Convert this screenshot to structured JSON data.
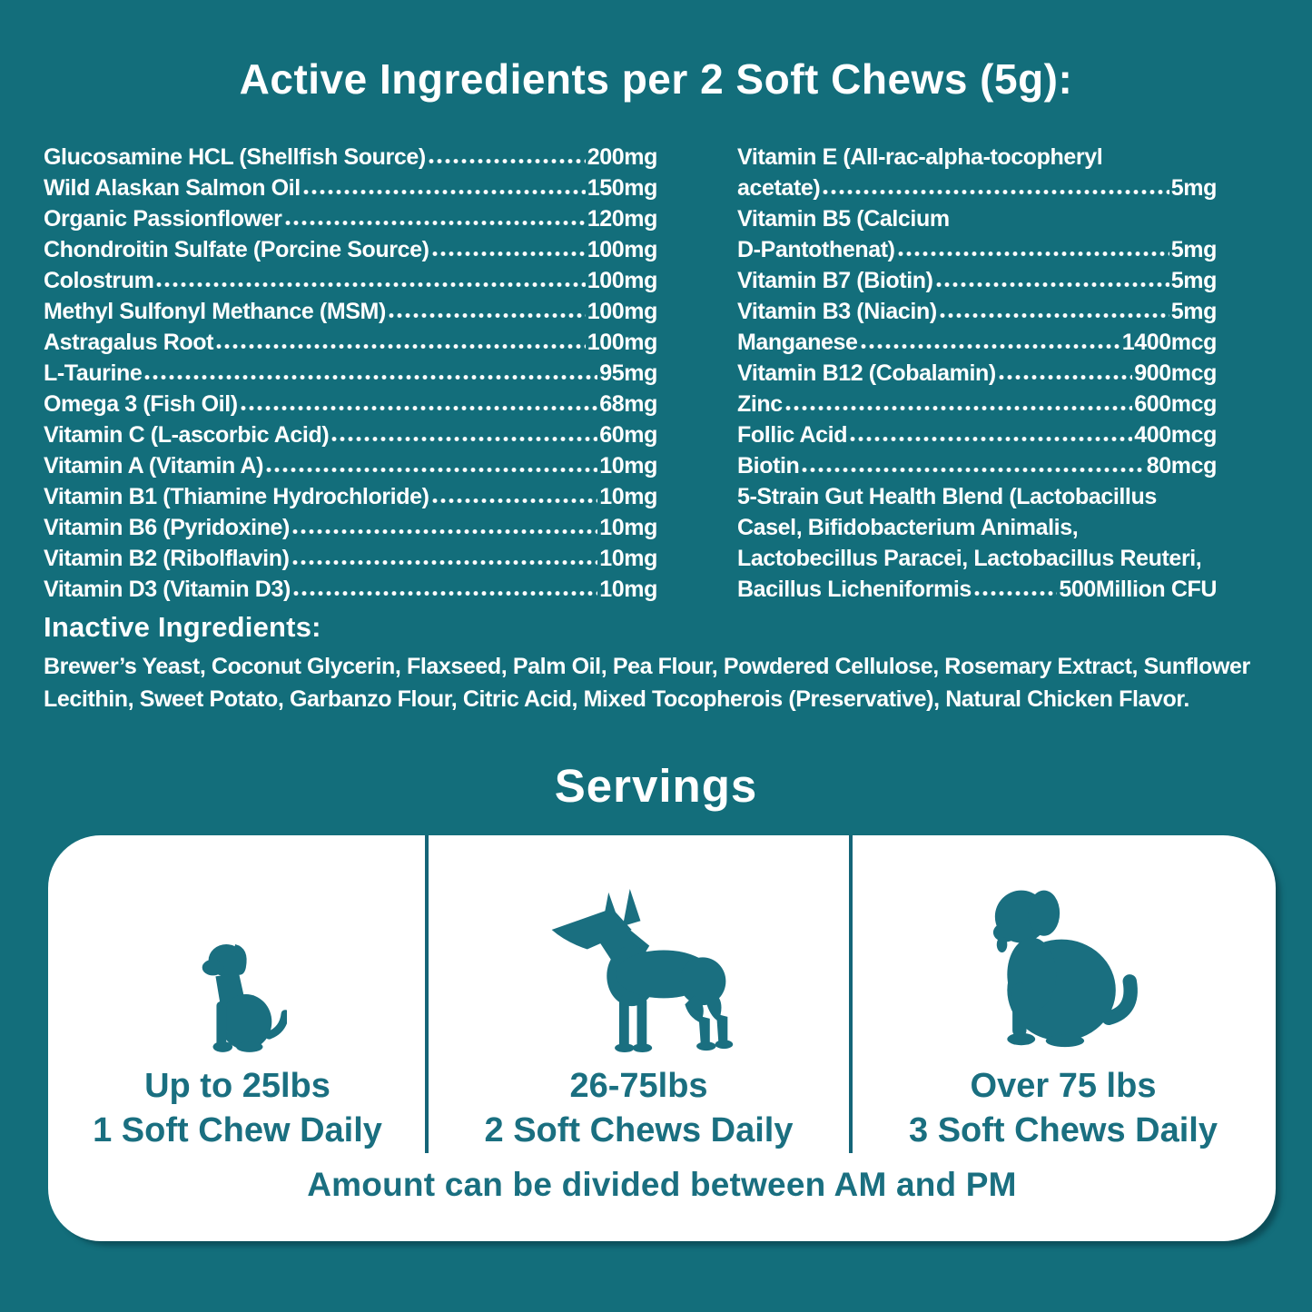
{
  "colors": {
    "background": "#136E7B",
    "accent": "#1A6F80",
    "divider": "#156578",
    "card": "#FFFFFF",
    "text_on_teal": "#FFFFFF"
  },
  "header": {
    "title": "Active Ingredients per 2 Soft Chews (5g):"
  },
  "active_ingredients": {
    "left": [
      {
        "name": "Glucosamine HCL (Shellfish Source)",
        "amount": "200mg"
      },
      {
        "name": "Wild Alaskan Salmon Oil",
        "amount": "150mg"
      },
      {
        "name": "Organic Passionflower",
        "amount": "120mg"
      },
      {
        "name": "Chondroitin Sulfate (Porcine Source)",
        "amount": "100mg"
      },
      {
        "name": "Colostrum",
        "amount": "100mg"
      },
      {
        "name": "Methyl Sulfonyl Methance (MSM)",
        "amount": "100mg"
      },
      {
        "name": "Astragalus Root",
        "amount": "100mg"
      },
      {
        "name": "L-Taurine",
        "amount": "95mg"
      },
      {
        "name": "Omega 3 (Fish Oil)",
        "amount": "68mg"
      },
      {
        "name": "Vitamin C (L-ascorbic Acid)",
        "amount": "60mg"
      },
      {
        "name": "Vitamin A (Vitamin A)",
        "amount": "10mg"
      },
      {
        "name": "Vitamin B1 (Thiamine Hydrochloride)",
        "amount": "10mg"
      },
      {
        "name": "Vitamin B6 (Pyridoxine)",
        "amount": "10mg"
      },
      {
        "name": "Vitamin B2 (Ribolflavin)",
        "amount": "10mg"
      },
      {
        "name": "Vitamin D3 (Vitamin D3)",
        "amount": "10mg"
      }
    ],
    "right": [
      {
        "name": "Vitamin E (All-rac-alpha-tocopheryl"
      },
      {
        "name": "acetate)",
        "amount": "5mg"
      },
      {
        "name": "Vitamin B5 (Calcium"
      },
      {
        "name": "D-Pantothenat)",
        "amount": "5mg"
      },
      {
        "name": "Vitamin B7 (Biotin)",
        "amount": "5mg"
      },
      {
        "name": "Vitamin B3 (Niacin)",
        "amount": "5mg"
      },
      {
        "name": "Manganese",
        "amount": "1400mcg"
      },
      {
        "name": "Vitamin B12 (Cobalamin)",
        "amount": "900mcg"
      },
      {
        "name": "Zinc",
        "amount": "600mcg"
      },
      {
        "name": "Follic Acid",
        "amount": "400mcg"
      },
      {
        "name": "Biotin",
        "amount": "80mcg"
      },
      {
        "name": "5-Strain Gut Health Blend (Lactobacillus"
      },
      {
        "name": "Casel, Bifidobacterium Animalis,"
      },
      {
        "name": "Lactobecillus Paracei, Lactobacillus Reuteri,"
      },
      {
        "name": "Bacillus Licheniformis",
        "amount": "500Million CFU"
      }
    ]
  },
  "inactive_ingredients": {
    "heading": "Inactive Ingredients:",
    "lines": [
      "Brewer’s Yeast, Coconut Glycerin, Flaxseed, Palm Oil, Pea Flour, Powdered Cellulose, Rosemary Extract, Sunflower",
      "Lecithin, Sweet Potato, Garbanzo Flour, Citric Acid, Mixed Tocopherois (Preservative), Natural Chicken Flavor."
    ]
  },
  "servings": {
    "heading": "Servings",
    "columns": [
      {
        "icon": "small-dog-icon",
        "weight": "Up to 25lbs",
        "dose": "1 Soft Chew Daily"
      },
      {
        "icon": "medium-dog-icon",
        "weight": "26-75lbs",
        "dose": "2 Soft Chews Daily"
      },
      {
        "icon": "large-dog-icon",
        "weight": "Over 75 lbs",
        "dose": "3 Soft Chews Daily"
      }
    ],
    "note": "Amount can be divided between AM and PM"
  }
}
